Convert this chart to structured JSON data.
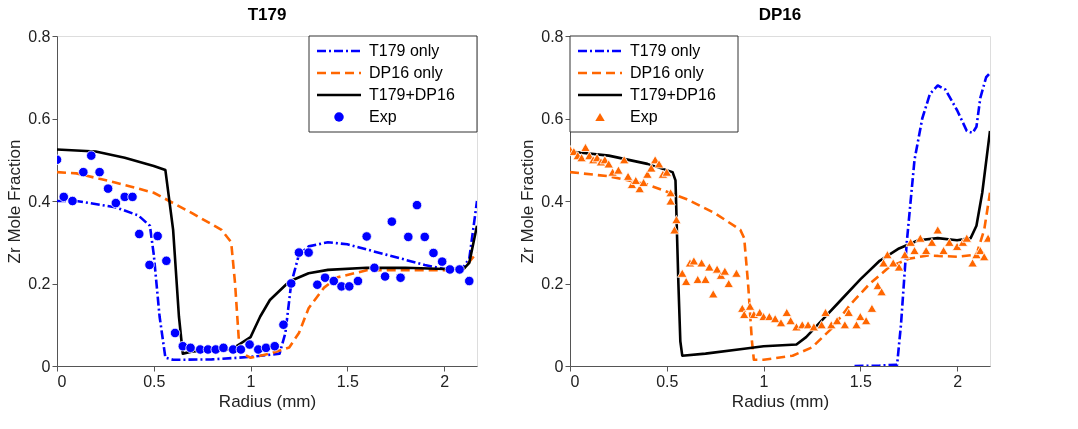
{
  "chart_data": [
    {
      "type": "line",
      "title": "T179",
      "xlabel": "Radius (mm)",
      "ylabel": "Zr Mole Fraction",
      "xlim": [
        0,
        2.17
      ],
      "ylim": [
        0,
        0.8
      ],
      "xticks": [
        0,
        0.5,
        1,
        1.5,
        2
      ],
      "yticks": [
        0,
        0.2,
        0.4,
        0.6,
        0.8
      ],
      "grid": false,
      "legend": "top right",
      "series": [
        {
          "name": "T179 only",
          "type": "line",
          "color": "#0000ff",
          "line_style": "dashdot",
          "marker": "none",
          "x": [
            0,
            0.1,
            0.3,
            0.42,
            0.48,
            0.5,
            0.53,
            0.56,
            0.6,
            0.8,
            1.0,
            1.15,
            1.18,
            1.21,
            1.25,
            1.3,
            1.4,
            1.5,
            1.7,
            1.9,
            2.0,
            2.1,
            2.13,
            2.17
          ],
          "values": [
            0.4,
            0.4,
            0.385,
            0.365,
            0.34,
            0.27,
            0.12,
            0.02,
            0.015,
            0.016,
            0.022,
            0.03,
            0.08,
            0.2,
            0.27,
            0.29,
            0.3,
            0.295,
            0.27,
            0.245,
            0.235,
            0.24,
            0.26,
            0.4
          ]
        },
        {
          "name": "DP16 only",
          "type": "line",
          "color": "#ff6600",
          "line_style": "dashed",
          "marker": "none",
          "x": [
            0,
            0.1,
            0.3,
            0.5,
            0.7,
            0.85,
            0.9,
            0.92,
            0.94,
            0.96,
            1.0,
            1.1,
            1.2,
            1.25,
            1.3,
            1.38,
            1.45,
            1.6,
            1.8,
            2.0,
            2.1,
            2.17
          ],
          "values": [
            0.47,
            0.467,
            0.445,
            0.42,
            0.37,
            0.33,
            0.3,
            0.2,
            0.06,
            0.03,
            0.02,
            0.03,
            0.045,
            0.08,
            0.14,
            0.19,
            0.215,
            0.232,
            0.232,
            0.232,
            0.235,
            0.275
          ]
        },
        {
          "name": "T179+DP16",
          "type": "line",
          "color": "#000000",
          "line_style": "solid",
          "marker": "none",
          "x": [
            0,
            0.2,
            0.35,
            0.5,
            0.56,
            0.6,
            0.63,
            0.65,
            0.7,
            0.9,
            1.0,
            1.05,
            1.1,
            1.2,
            1.3,
            1.4,
            1.6,
            1.8,
            2.0,
            2.1,
            2.13,
            2.17
          ],
          "values": [
            0.525,
            0.52,
            0.505,
            0.485,
            0.475,
            0.33,
            0.12,
            0.03,
            0.035,
            0.04,
            0.07,
            0.12,
            0.16,
            0.205,
            0.225,
            0.233,
            0.238,
            0.238,
            0.235,
            0.235,
            0.25,
            0.34
          ]
        },
        {
          "name": "Exp",
          "type": "scatter",
          "color": "#0000ff",
          "marker": "circle",
          "x": [
            0,
            0.035,
            0.08,
            0.136,
            0.177,
            0.22,
            0.264,
            0.304,
            0.35,
            0.39,
            0.425,
            0.478,
            0.52,
            0.565,
            0.61,
            0.65,
            0.69,
            0.74,
            0.78,
            0.82,
            0.86,
            0.91,
            0.95,
            0.995,
            1.04,
            1.08,
            1.125,
            1.17,
            1.21,
            1.25,
            1.3,
            1.345,
            1.385,
            1.43,
            1.47,
            1.51,
            1.555,
            1.6,
            1.64,
            1.695,
            1.73,
            1.775,
            1.815,
            1.86,
            1.9,
            1.945,
            1.99,
            2.03,
            2.08,
            2.13
          ],
          "values": [
            0.5,
            0.41,
            0.4,
            0.47,
            0.51,
            0.47,
            0.43,
            0.395,
            0.41,
            0.41,
            0.32,
            0.245,
            0.315,
            0.255,
            0.08,
            0.048,
            0.044,
            0.04,
            0.04,
            0.04,
            0.044,
            0.04,
            0.04,
            0.052,
            0.04,
            0.044,
            0.048,
            0.1,
            0.2,
            0.275,
            0.275,
            0.197,
            0.214,
            0.206,
            0.193,
            0.193,
            0.206,
            0.314,
            0.238,
            0.217,
            0.35,
            0.214,
            0.313,
            0.39,
            0.313,
            0.274,
            0.253,
            0.234,
            0.234,
            0.206
          ]
        }
      ]
    },
    {
      "type": "line",
      "title": "DP16",
      "xlabel": "Radius (mm)",
      "ylabel": "Zr Mole Fraction",
      "xlim": [
        0,
        2.17
      ],
      "ylim": [
        0,
        0.8
      ],
      "xticks": [
        0,
        0.5,
        1,
        1.5,
        2
      ],
      "yticks": [
        0,
        0.2,
        0.4,
        0.6,
        0.8
      ],
      "grid": false,
      "legend": "top left",
      "series": [
        {
          "name": "T179 only",
          "type": "line",
          "color": "#0000ff",
          "line_style": "dashdot",
          "marker": "none",
          "x": [
            1.47,
            1.6,
            1.69,
            1.71,
            1.74,
            1.78,
            1.82,
            1.86,
            1.9,
            1.94,
            2.0,
            2.05,
            2.08,
            2.1,
            2.12,
            2.15,
            2.17
          ],
          "values": [
            0,
            0.001,
            0.003,
            0.1,
            0.3,
            0.5,
            0.6,
            0.66,
            0.68,
            0.67,
            0.62,
            0.57,
            0.565,
            0.58,
            0.65,
            0.7,
            0.71
          ]
        },
        {
          "name": "DP16 only",
          "type": "line",
          "color": "#ff6600",
          "line_style": "dashed",
          "marker": "none",
          "x": [
            0,
            0.2,
            0.4,
            0.6,
            0.75,
            0.88,
            0.9,
            0.92,
            0.94,
            0.95,
            1.0,
            1.15,
            1.25,
            1.35,
            1.45,
            1.55,
            1.65,
            1.75,
            1.85,
            2.0,
            2.1,
            2.14,
            2.17
          ],
          "values": [
            0.47,
            0.46,
            0.44,
            0.405,
            0.37,
            0.33,
            0.31,
            0.2,
            0.06,
            0.015,
            0.015,
            0.025,
            0.045,
            0.09,
            0.15,
            0.2,
            0.24,
            0.26,
            0.268,
            0.265,
            0.27,
            0.33,
            0.42
          ]
        },
        {
          "name": "T179+DP16",
          "type": "line",
          "color": "#000000",
          "line_style": "solid",
          "marker": "none",
          "x": [
            0,
            0.2,
            0.4,
            0.53,
            0.545,
            0.56,
            0.57,
            0.58,
            0.7,
            0.9,
            1.0,
            1.17,
            1.22,
            1.3,
            1.4,
            1.5,
            1.6,
            1.7,
            1.8,
            1.9,
            2.0,
            2.07,
            2.1,
            2.13,
            2.17
          ],
          "values": [
            0.52,
            0.51,
            0.49,
            0.47,
            0.45,
            0.2,
            0.06,
            0.025,
            0.03,
            0.042,
            0.048,
            0.052,
            0.07,
            0.11,
            0.16,
            0.21,
            0.255,
            0.285,
            0.305,
            0.31,
            0.305,
            0.31,
            0.34,
            0.42,
            0.57
          ]
        },
        {
          "name": "Exp",
          "type": "scatter",
          "color": "#ff6600",
          "marker": "triangle",
          "x": [
            0.0,
            0.02,
            0.04,
            0.06,
            0.08,
            0.1,
            0.12,
            0.14,
            0.16,
            0.18,
            0.2,
            0.22,
            0.25,
            0.28,
            0.3,
            0.32,
            0.34,
            0.36,
            0.38,
            0.4,
            0.42,
            0.44,
            0.46,
            0.48,
            0.5,
            0.52,
            0.52,
            0.55,
            0.54,
            0.58,
            0.6,
            0.62,
            0.64,
            0.66,
            0.68,
            0.7,
            0.72,
            0.74,
            0.76,
            0.78,
            0.8,
            0.82,
            0.86,
            0.89,
            0.9,
            0.93,
            0.95,
            0.98,
            1.0,
            1.03,
            1.06,
            1.09,
            1.12,
            1.14,
            1.17,
            1.2,
            1.23,
            1.26,
            1.3,
            1.32,
            1.35,
            1.38,
            1.42,
            1.44,
            1.48,
            1.5,
            1.53,
            1.56,
            1.59,
            1.61,
            1.62,
            1.64,
            1.67,
            1.7,
            1.73,
            1.76,
            1.78,
            1.81,
            1.84,
            1.87,
            1.9,
            1.93,
            1.96,
            2.0,
            2.03,
            2.05,
            2.08,
            2.1,
            2.12,
            2.14,
            2.16
          ],
          "values": [
            0.525,
            0.52,
            0.51,
            0.505,
            0.53,
            0.51,
            0.5,
            0.505,
            0.495,
            0.5,
            0.49,
            0.47,
            0.475,
            0.5,
            0.46,
            0.44,
            0.45,
            0.43,
            0.445,
            0.465,
            0.48,
            0.5,
            0.49,
            0.465,
            0.47,
            0.42,
            0.4,
            0.355,
            0.33,
            0.225,
            0.205,
            0.25,
            0.255,
            0.21,
            0.25,
            0.21,
            0.24,
            0.175,
            0.235,
            0.22,
            0.23,
            0.2,
            0.225,
            0.14,
            0.125,
            0.145,
            0.125,
            0.13,
            0.12,
            0.12,
            0.115,
            0.105,
            0.13,
            0.11,
            0.095,
            0.1,
            0.1,
            0.095,
            0.1,
            0.13,
            0.1,
            0.11,
            0.1,
            0.13,
            0.1,
            0.12,
            0.11,
            0.14,
            0.195,
            0.18,
            0.25,
            0.27,
            0.25,
            0.24,
            0.27,
            0.3,
            0.28,
            0.31,
            0.28,
            0.3,
            0.33,
            0.28,
            0.3,
            0.29,
            0.3,
            0.31,
            0.25,
            0.27,
            0.28,
            0.265,
            0.31
          ]
        }
      ]
    }
  ]
}
